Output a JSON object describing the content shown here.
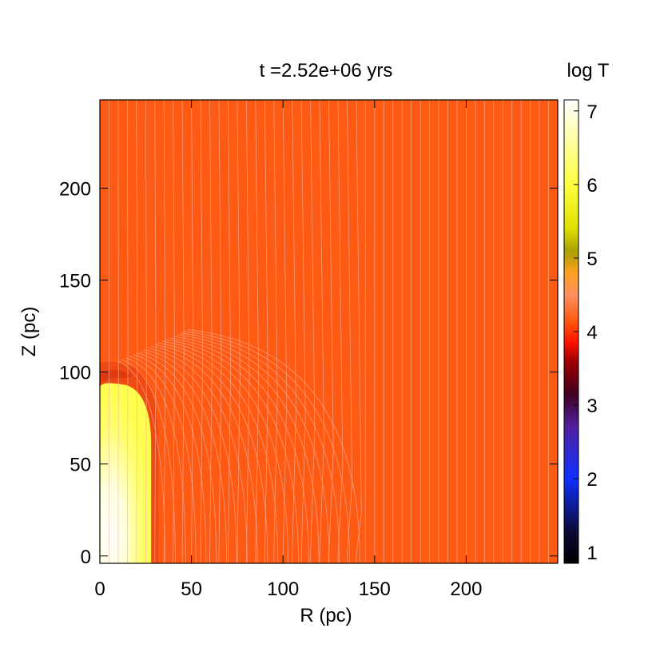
{
  "chart_data": {
    "type": "heatmap",
    "title": "t =2.52e+06 yrs",
    "xlabel": "R (pc)",
    "ylabel": "Z (pc)",
    "xlim": [
      0,
      250
    ],
    "ylim": [
      -4,
      248
    ],
    "xticks": [
      0,
      50,
      100,
      150,
      200
    ],
    "yticks": [
      0,
      50,
      100,
      150,
      200
    ],
    "colorbar": {
      "label": "log T",
      "range": [
        0.85,
        7.15
      ],
      "ticks": [
        1,
        2,
        3,
        4,
        5,
        6,
        7
      ],
      "stops": [
        {
          "value": 0.85,
          "color": "#000000"
        },
        {
          "value": 1.3,
          "color": "#0a0a3a"
        },
        {
          "value": 2.0,
          "color": "#1030ff"
        },
        {
          "value": 2.7,
          "color": "#5020a0"
        },
        {
          "value": 3.15,
          "color": "#400020"
        },
        {
          "value": 3.6,
          "color": "#a00000"
        },
        {
          "value": 3.85,
          "color": "#ff1000"
        },
        {
          "value": 4.15,
          "color": "#ff5a10"
        },
        {
          "value": 4.5,
          "color": "#ff9060"
        },
        {
          "value": 4.8,
          "color": "#ffa020"
        },
        {
          "value": 5.1,
          "color": "#a8a000"
        },
        {
          "value": 5.4,
          "color": "#e0e000"
        },
        {
          "value": 6.0,
          "color": "#ffff40"
        },
        {
          "value": 7.15,
          "color": "#ffffff"
        }
      ]
    },
    "field": {
      "background_logT": 4.15,
      "background_color": "#ff5a14",
      "hot_bubble": {
        "r_max": 28,
        "z_top": 93,
        "logT": 6.0,
        "color": "#ffff55",
        "core_color": "#ffffff"
      },
      "shell": {
        "color": "#f04a14",
        "outer_r": 32,
        "outer_z": 105
      },
      "field_lines": {
        "spacing": 5,
        "perturbed_radius": 143,
        "perturbed_height": 113,
        "color": "#ffb49a"
      }
    }
  }
}
